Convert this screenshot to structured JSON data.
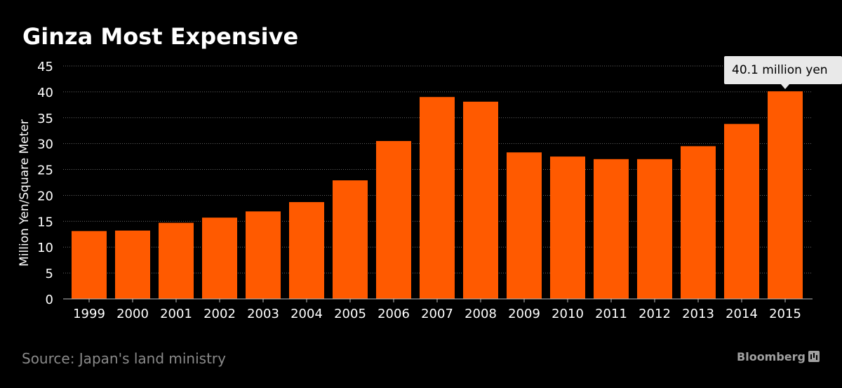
{
  "colors": {
    "background": "#000000",
    "bar": "#ff5a00",
    "text": "#ffffff",
    "gridline": "#666666",
    "source_text": "#8a8a8a",
    "callout_bg": "#e9e9e9",
    "callout_text": "#000000"
  },
  "source": "Source: Japan's land ministry",
  "brand": "Bloomberg",
  "brand_icon": "bloomberg-chart-icon",
  "callout": {
    "text": "40.1 million yen",
    "category": "2015"
  },
  "chart_data": {
    "type": "bar",
    "title": "Ginza Most Expensive",
    "xlabel": "",
    "ylabel": "Million Yen/Square Meter",
    "ylim": [
      0,
      45
    ],
    "yticks": [
      0,
      5,
      10,
      15,
      20,
      25,
      30,
      35,
      40,
      45
    ],
    "grid": true,
    "categories": [
      "1999",
      "2000",
      "2001",
      "2002",
      "2003",
      "2004",
      "2005",
      "2006",
      "2007",
      "2008",
      "2009",
      "2010",
      "2011",
      "2012",
      "2013",
      "2014",
      "2015"
    ],
    "values": [
      13.1,
      13.2,
      14.7,
      15.7,
      16.9,
      18.7,
      22.9,
      30.5,
      39.0,
      38.1,
      28.3,
      27.5,
      27.0,
      27.0,
      29.5,
      33.8,
      40.1
    ]
  }
}
